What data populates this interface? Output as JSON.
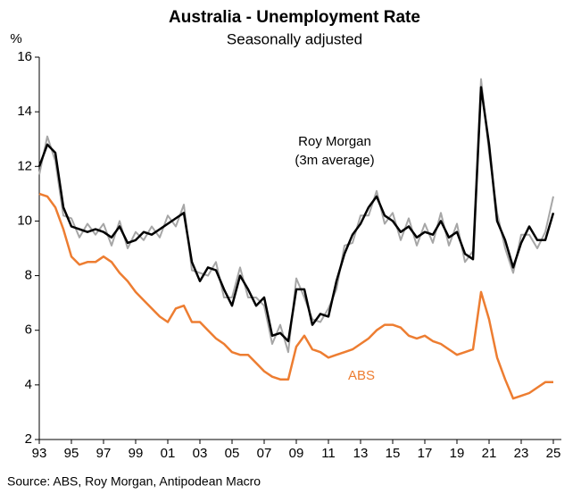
{
  "chart_data": {
    "type": "line",
    "title": "Australia - Unemployment Rate",
    "subtitle": "Seasonally adjusted",
    "y_label": "%",
    "source": "Source: ABS, Roy Morgan, Antipodean Macro",
    "annotations": [
      "Roy Morgan",
      "(3m average)",
      "ABS"
    ],
    "xlim": [
      1993,
      2025.5
    ],
    "xticks": [
      {
        "value": 1993,
        "label": "93"
      },
      {
        "value": 1995,
        "label": "95"
      },
      {
        "value": 1997,
        "label": "97"
      },
      {
        "value": 1999,
        "label": "99"
      },
      {
        "value": 2001,
        "label": "01"
      },
      {
        "value": 2003,
        "label": "03"
      },
      {
        "value": 2005,
        "label": "05"
      },
      {
        "value": 2007,
        "label": "07"
      },
      {
        "value": 2009,
        "label": "09"
      },
      {
        "value": 2011,
        "label": "11"
      },
      {
        "value": 2013,
        "label": "13"
      },
      {
        "value": 2015,
        "label": "15"
      },
      {
        "value": 2017,
        "label": "17"
      },
      {
        "value": 2019,
        "label": "19"
      },
      {
        "value": 2021,
        "label": "21"
      },
      {
        "value": 2023,
        "label": "23"
      },
      {
        "value": 2025,
        "label": "25"
      }
    ],
    "ylim": [
      2,
      16
    ],
    "yticks": [
      2,
      4,
      6,
      8,
      10,
      12,
      14,
      16
    ],
    "x": [
      1993,
      1993.5,
      1994,
      1994.5,
      1995,
      1995.5,
      1996,
      1996.5,
      1997,
      1997.5,
      1998,
      1998.5,
      1999,
      1999.5,
      2000,
      2000.5,
      2001,
      2001.5,
      2002,
      2002.5,
      2003,
      2003.5,
      2004,
      2004.5,
      2005,
      2005.5,
      2006,
      2006.5,
      2007,
      2007.5,
      2008,
      2008.5,
      2009,
      2009.5,
      2010,
      2010.5,
      2011,
      2011.5,
      2012,
      2012.5,
      2013,
      2013.5,
      2014,
      2014.5,
      2015,
      2015.5,
      2016,
      2016.5,
      2017,
      2017.5,
      2018,
      2018.5,
      2019,
      2019.5,
      2020,
      2020.5,
      2021,
      2021.5,
      2022,
      2022.5,
      2023,
      2023.5,
      2024,
      2024.5,
      2025
    ],
    "series": [
      {
        "color": "#a6a6a6",
        "width": 2,
        "values": [
          11.7,
          13.1,
          12.2,
          10.2,
          10.1,
          9.4,
          9.9,
          9.5,
          9.9,
          9.1,
          10.0,
          9.0,
          9.6,
          9.3,
          9.8,
          9.4,
          10.2,
          9.8,
          10.6,
          8.2,
          8.1,
          8.0,
          8.5,
          7.2,
          7.2,
          8.3,
          7.2,
          7.2,
          6.9,
          5.5,
          6.2,
          5.2,
          7.9,
          7.2,
          6.4,
          6.3,
          6.8,
          7.5,
          9.1,
          9.2,
          10.2,
          10.2,
          11.1,
          9.9,
          10.3,
          9.3,
          10.1,
          9.1,
          9.9,
          9.2,
          10.3,
          9.1,
          9.9,
          8.5,
          8.9,
          15.2,
          12.5,
          10.3,
          9.0,
          8.1,
          9.5,
          9.5,
          9.0,
          9.6,
          10.9
        ]
      },
      {
        "color": "#000000",
        "width": 2.5,
        "values": [
          12.0,
          12.8,
          12.5,
          10.5,
          9.8,
          9.7,
          9.6,
          9.7,
          9.6,
          9.4,
          9.8,
          9.2,
          9.3,
          9.6,
          9.5,
          9.7,
          9.9,
          10.1,
          10.3,
          8.5,
          7.8,
          8.3,
          8.2,
          7.5,
          6.9,
          8.0,
          7.5,
          6.9,
          7.2,
          5.8,
          5.9,
          5.6,
          7.5,
          7.5,
          6.2,
          6.6,
          6.5,
          7.8,
          8.8,
          9.5,
          9.9,
          10.5,
          10.9,
          10.2,
          10.0,
          9.6,
          9.8,
          9.4,
          9.6,
          9.5,
          10.0,
          9.4,
          9.6,
          8.8,
          8.6,
          14.9,
          12.8,
          10.0,
          9.3,
          8.3,
          9.2,
          9.8,
          9.3,
          9.3,
          10.3
        ]
      },
      {
        "name": "ABS",
        "color": "#ed7d31",
        "width": 2.5,
        "values": [
          11.0,
          10.9,
          10.5,
          9.7,
          8.7,
          8.4,
          8.5,
          8.5,
          8.7,
          8.5,
          8.1,
          7.8,
          7.4,
          7.1,
          6.8,
          6.5,
          6.3,
          6.8,
          6.9,
          6.3,
          6.3,
          6.0,
          5.7,
          5.5,
          5.2,
          5.1,
          5.1,
          4.8,
          4.5,
          4.3,
          4.2,
          4.2,
          5.4,
          5.8,
          5.3,
          5.2,
          5.0,
          5.1,
          5.2,
          5.3,
          5.5,
          5.7,
          6.0,
          6.2,
          6.2,
          6.1,
          5.8,
          5.7,
          5.8,
          5.6,
          5.5,
          5.3,
          5.1,
          5.2,
          5.3,
          7.4,
          6.4,
          5.0,
          4.2,
          3.5,
          3.6,
          3.7,
          3.9,
          4.1,
          4.1
        ]
      }
    ]
  }
}
